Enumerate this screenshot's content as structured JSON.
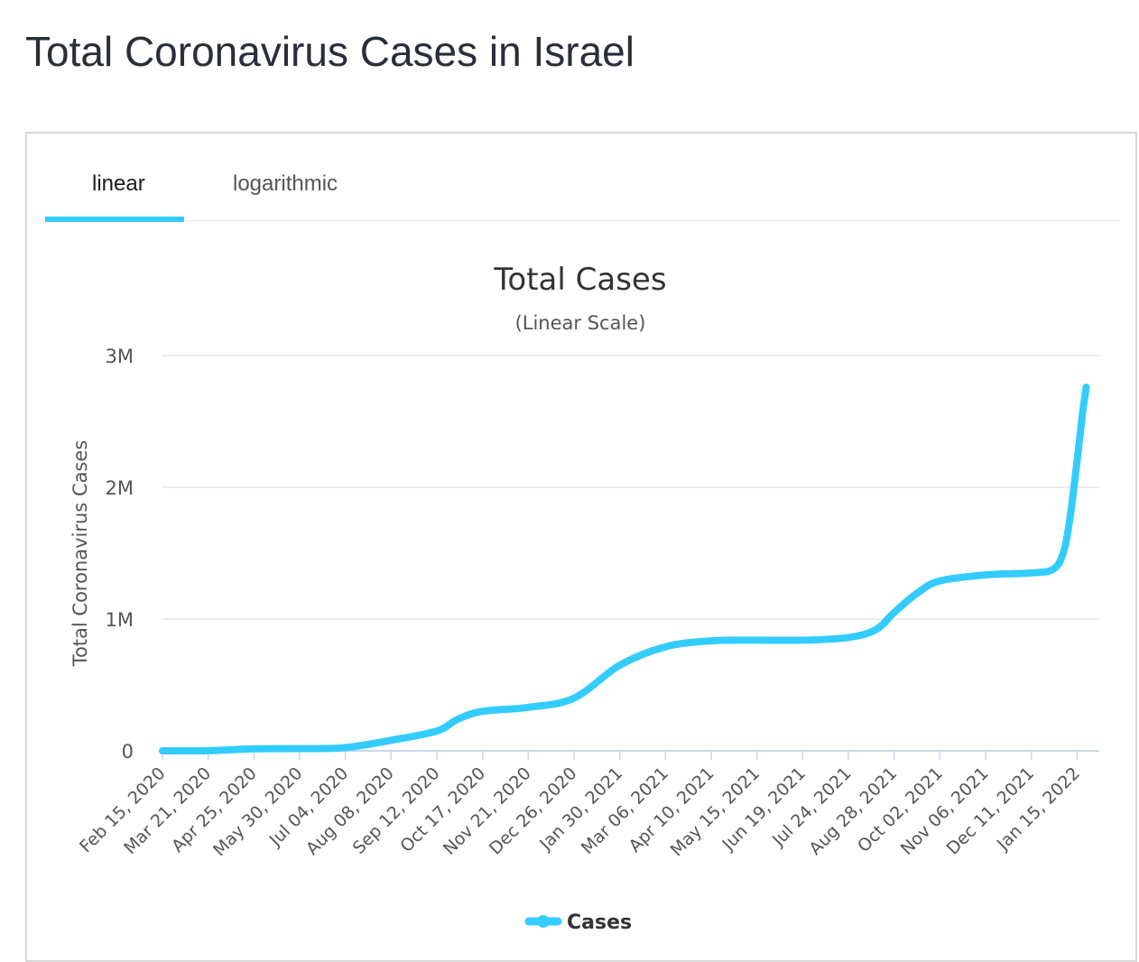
{
  "page": {
    "title": "Total Coronavirus Cases in Israel"
  },
  "tabs": [
    {
      "label": "linear",
      "active": true
    },
    {
      "label": "logarithmic",
      "active": false
    }
  ],
  "colors": {
    "accent": "#33ccff",
    "series": "#33ccff",
    "grid": "#e6e6e6",
    "text": "#333333",
    "axis": "#ccd6eb"
  },
  "chart_data": {
    "type": "line",
    "title": "Total Cases",
    "subtitle": "(Linear Scale)",
    "ylabel": "Total Coronavirus Cases",
    "xlabel": "",
    "ylim": [
      0,
      3000000
    ],
    "y_ticks": [
      {
        "value": 0,
        "label": "0"
      },
      {
        "value": 1000000,
        "label": "1M"
      },
      {
        "value": 2000000,
        "label": "2M"
      },
      {
        "value": 3000000,
        "label": "3M"
      }
    ],
    "x_range": [
      "2020-02-15",
      "2022-02-01"
    ],
    "x_ticks": [
      "Feb 15, 2020",
      "Mar 21, 2020",
      "Apr 25, 2020",
      "May 30, 2020",
      "Jul 04, 2020",
      "Aug 08, 2020",
      "Sep 12, 2020",
      "Oct 17, 2020",
      "Nov 21, 2020",
      "Dec 26, 2020",
      "Jan 30, 2021",
      "Mar 06, 2021",
      "Apr 10, 2021",
      "May 15, 2021",
      "Jun 19, 2021",
      "Jul 24, 2021",
      "Aug 28, 2021",
      "Oct 02, 2021",
      "Nov 06, 2021",
      "Dec 11, 2021",
      "Jan 15, 2022"
    ],
    "grid": true,
    "legend": "bottom-center",
    "series": [
      {
        "name": "Cases",
        "points": [
          [
            "2020-02-15",
            0
          ],
          [
            "2020-03-21",
            1000
          ],
          [
            "2020-04-25",
            15000
          ],
          [
            "2020-05-30",
            17000
          ],
          [
            "2020-07-04",
            25000
          ],
          [
            "2020-08-08",
            80000
          ],
          [
            "2020-09-12",
            150000
          ],
          [
            "2020-09-28",
            240000
          ],
          [
            "2020-10-17",
            300000
          ],
          [
            "2020-11-21",
            330000
          ],
          [
            "2020-12-26",
            400000
          ],
          [
            "2021-01-30",
            650000
          ],
          [
            "2021-03-06",
            790000
          ],
          [
            "2021-04-10",
            835000
          ],
          [
            "2021-05-15",
            840000
          ],
          [
            "2021-06-19",
            840000
          ],
          [
            "2021-07-24",
            860000
          ],
          [
            "2021-08-14",
            920000
          ],
          [
            "2021-08-28",
            1050000
          ],
          [
            "2021-09-15",
            1200000
          ],
          [
            "2021-10-02",
            1290000
          ],
          [
            "2021-11-06",
            1335000
          ],
          [
            "2021-12-11",
            1350000
          ],
          [
            "2021-12-28",
            1380000
          ],
          [
            "2022-01-05",
            1520000
          ],
          [
            "2022-01-10",
            1800000
          ],
          [
            "2022-01-15",
            2200000
          ],
          [
            "2022-01-19",
            2550000
          ],
          [
            "2022-01-22",
            2760000
          ]
        ]
      }
    ]
  }
}
